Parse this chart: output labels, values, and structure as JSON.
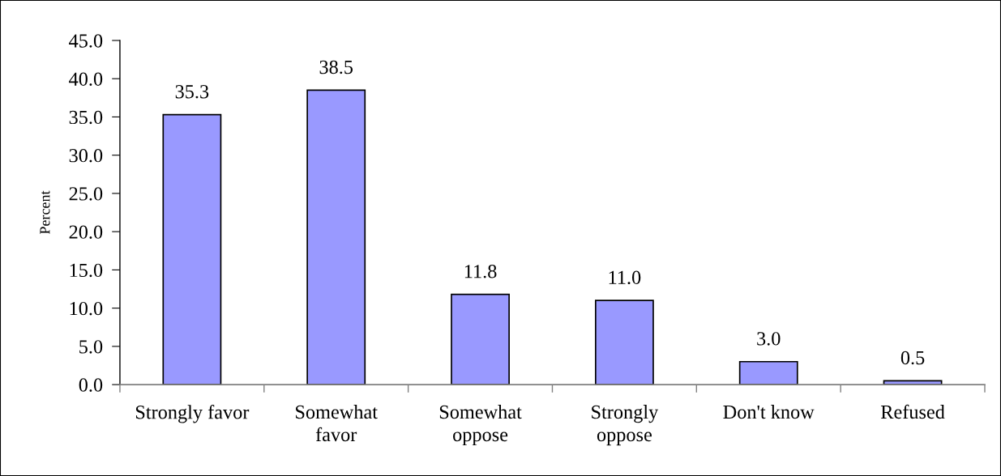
{
  "chart_data": {
    "type": "bar",
    "ylabel": "Percent",
    "categories": [
      "Strongly favor",
      "Somewhat\nfavor",
      "Somewhat\noppose",
      "Strongly\noppose",
      "Don't know",
      "Refused"
    ],
    "values": [
      35.3,
      38.5,
      11.8,
      11.0,
      3.0,
      0.5
    ],
    "value_labels": [
      "35.3",
      "38.5",
      "11.8",
      "11.0",
      "3.0",
      "0.5"
    ],
    "color": "#9999ff",
    "ylim": [
      0,
      45
    ],
    "yticks": [
      {
        "value": 0,
        "label": "0.0"
      },
      {
        "value": 5,
        "label": "5.0"
      },
      {
        "value": 10,
        "label": "10.0"
      },
      {
        "value": 15,
        "label": "15.0"
      },
      {
        "value": 20,
        "label": "20.0"
      },
      {
        "value": 25,
        "label": "25.0"
      },
      {
        "value": 30,
        "label": "30.0"
      },
      {
        "value": 35,
        "label": "35.0"
      },
      {
        "value": 40,
        "label": "40.0"
      },
      {
        "value": 45,
        "label": "45.0"
      }
    ]
  }
}
